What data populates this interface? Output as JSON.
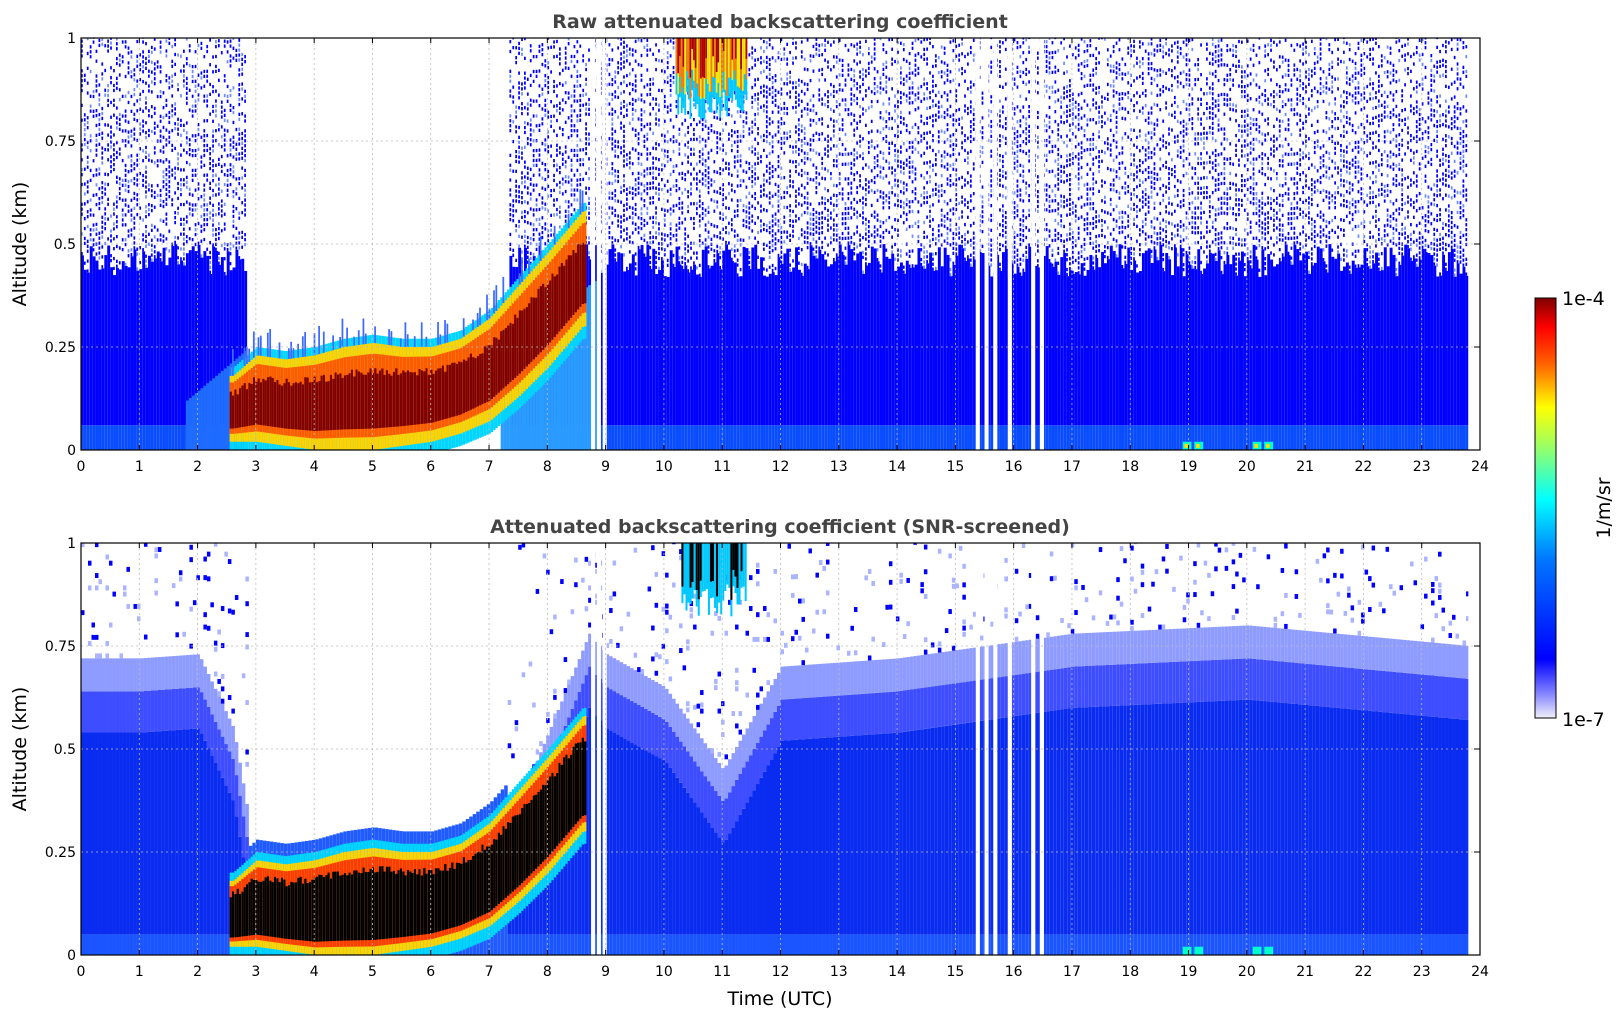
{
  "colors": {
    "jet_scale": [
      "#f0f0fa",
      "#0000ff",
      "#00aaff",
      "#00ffff",
      "#ffff00",
      "#ff6600",
      "#ff0000",
      "#800000"
    ],
    "saturation_black": "#000000",
    "grid": "#bbbbbb",
    "title": "#444444"
  },
  "chart_data": [
    {
      "type": "heatmap",
      "title": "Raw attenuated backscattering coefficient",
      "xlabel": "",
      "ylabel": "Altitude (km)",
      "xlim": [
        0,
        24
      ],
      "ylim": [
        0,
        1
      ],
      "xticks": [
        "0",
        "1",
        "2",
        "3",
        "4",
        "5",
        "6",
        "7",
        "8",
        "9",
        "10",
        "11",
        "12",
        "13",
        "14",
        "15",
        "16",
        "17",
        "18",
        "19",
        "20",
        "21",
        "22",
        "23",
        "24"
      ],
      "yticks": [
        "0",
        "0.25",
        "0.5",
        "0.75",
        "1"
      ],
      "grid": true,
      "data_end_time": 23.8,
      "rain_gap": {
        "start": 2.8,
        "end": 7.3
      },
      "cloud_base_km": [
        {
          "t": 2.6,
          "base": 0.02,
          "top": 0.18
        },
        {
          "t": 3.0,
          "base": 0.02,
          "top": 0.23
        },
        {
          "t": 3.5,
          "base": 0.01,
          "top": 0.22
        },
        {
          "t": 4.0,
          "base": 0.0,
          "top": 0.23
        },
        {
          "t": 4.5,
          "base": 0.0,
          "top": 0.25
        },
        {
          "t": 5.0,
          "base": 0.0,
          "top": 0.26
        },
        {
          "t": 5.5,
          "base": 0.01,
          "top": 0.25
        },
        {
          "t": 6.0,
          "base": 0.02,
          "top": 0.25
        },
        {
          "t": 6.5,
          "base": 0.04,
          "top": 0.27
        },
        {
          "t": 7.0,
          "base": 0.07,
          "top": 0.32
        },
        {
          "t": 7.5,
          "base": 0.13,
          "top": 0.4
        },
        {
          "t": 8.0,
          "base": 0.2,
          "top": 0.48
        },
        {
          "t": 8.6,
          "base": 0.3,
          "top": 0.58
        }
      ],
      "upper_cloud": {
        "start": 10.2,
        "end": 11.4,
        "base": 0.8,
        "top": 1.0
      },
      "missing_times": [
        8.75,
        8.85,
        8.95,
        15.35,
        15.5,
        15.65,
        15.9,
        16.3,
        16.45
      ],
      "surface_spots": [
        18.9,
        19.1,
        20.1,
        20.3
      ]
    },
    {
      "type": "heatmap",
      "title": "Attenuated backscattering coefficient (SNR-screened)",
      "xlabel": "Time (UTC)",
      "ylabel": "Altitude (km)",
      "xlim": [
        0,
        24
      ],
      "ylim": [
        0,
        1
      ],
      "xticks": [
        "0",
        "1",
        "2",
        "3",
        "4",
        "5",
        "6",
        "7",
        "8",
        "9",
        "10",
        "11",
        "12",
        "13",
        "14",
        "15",
        "16",
        "17",
        "18",
        "19",
        "20",
        "21",
        "22",
        "23",
        "24"
      ],
      "yticks": [
        "0",
        "0.25",
        "0.5",
        "0.75",
        "1"
      ],
      "grid": true,
      "data_end_time": 23.8,
      "signal_top_km": [
        {
          "t": 0,
          "top": 0.72
        },
        {
          "t": 1,
          "top": 0.72
        },
        {
          "t": 2,
          "top": 0.73
        },
        {
          "t": 2.6,
          "top": 0.55
        },
        {
          "t": 2.9,
          "top": 0.3
        },
        {
          "t": 7.3,
          "top": 0.3
        },
        {
          "t": 8.7,
          "top": 0.78
        },
        {
          "t": 9.0,
          "top": 0.73
        },
        {
          "t": 10,
          "top": 0.65
        },
        {
          "t": 11,
          "top": 0.45
        },
        {
          "t": 12,
          "top": 0.7
        },
        {
          "t": 14,
          "top": 0.72
        },
        {
          "t": 17,
          "top": 0.78
        },
        {
          "t": 20,
          "top": 0.8
        },
        {
          "t": 23.8,
          "top": 0.75
        }
      ]
    }
  ],
  "colorbar": {
    "label": "1/m/sr",
    "max_label": "1e-4",
    "min_label": "1e-7"
  }
}
